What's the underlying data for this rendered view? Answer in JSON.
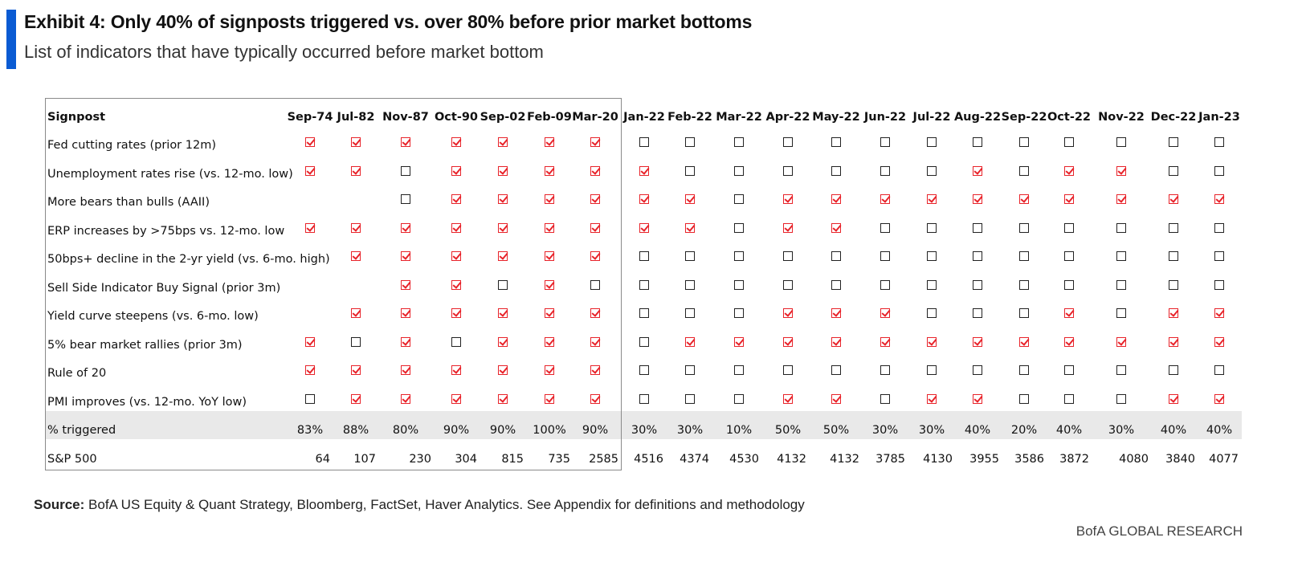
{
  "header": {
    "title": "Exhibit 4: Only 40% of signposts triggered vs. over 80% before prior market bottoms",
    "subtitle": "List of indicators that have typically occurred before market bottom"
  },
  "colors": {
    "accent": "#0a5bd3",
    "checked": "#e8232a",
    "band": "#e9e9e9"
  },
  "table": {
    "corner": "Signpost",
    "periods": [
      "Sep-74",
      "Jul-82",
      "Nov-87",
      "Oct-90",
      "Sep-02",
      "Feb-09",
      "Mar-20",
      "Jan-22",
      "Feb-22",
      "Mar-22",
      "Apr-22",
      "May-22",
      "Jun-22",
      "Jul-22",
      "Aug-22",
      "Sep-22",
      "Oct-22",
      "Nov-22",
      "Dec-22",
      "Jan-23"
    ],
    "rows": [
      {
        "label": "Fed cutting rates (prior 12m)",
        "cells": [
          1,
          1,
          1,
          1,
          1,
          1,
          1,
          0,
          0,
          0,
          0,
          0,
          0,
          0,
          0,
          0,
          0,
          0,
          0,
          0
        ]
      },
      {
        "label": "Unemployment rates rise (vs. 12-mo. low)",
        "cells": [
          1,
          1,
          0,
          1,
          1,
          1,
          1,
          1,
          0,
          0,
          0,
          0,
          0,
          0,
          1,
          0,
          1,
          1,
          0,
          0
        ]
      },
      {
        "label": "More bears than bulls (AAII)",
        "cells": [
          null,
          null,
          0,
          1,
          1,
          1,
          1,
          1,
          1,
          0,
          1,
          1,
          1,
          1,
          1,
          1,
          1,
          1,
          1,
          1
        ]
      },
      {
        "label": "ERP increases by >75bps vs. 12-mo. low",
        "cells": [
          1,
          1,
          1,
          1,
          1,
          1,
          1,
          1,
          1,
          0,
          1,
          1,
          0,
          0,
          0,
          0,
          0,
          0,
          0,
          0
        ]
      },
      {
        "label": "50bps+ decline in the 2-yr yield (vs. 6-mo. high)",
        "cells": [
          null,
          1,
          1,
          1,
          1,
          1,
          1,
          0,
          0,
          0,
          0,
          0,
          0,
          0,
          0,
          0,
          0,
          0,
          0,
          0
        ]
      },
      {
        "label": "Sell Side Indicator Buy Signal (prior 3m)",
        "cells": [
          null,
          null,
          1,
          1,
          0,
          1,
          0,
          0,
          0,
          0,
          0,
          0,
          0,
          0,
          0,
          0,
          0,
          0,
          0,
          0
        ]
      },
      {
        "label": "Yield curve steepens (vs. 6-mo. low)",
        "cells": [
          null,
          1,
          1,
          1,
          1,
          1,
          1,
          0,
          0,
          0,
          1,
          1,
          1,
          0,
          0,
          0,
          1,
          0,
          1,
          1
        ]
      },
      {
        "label": "5% bear market rallies (prior 3m)",
        "cells": [
          1,
          0,
          1,
          0,
          1,
          1,
          1,
          0,
          1,
          1,
          1,
          1,
          1,
          1,
          1,
          1,
          1,
          1,
          1,
          1
        ]
      },
      {
        "label": "Rule of 20",
        "cells": [
          1,
          1,
          1,
          1,
          1,
          1,
          1,
          0,
          0,
          0,
          0,
          0,
          0,
          0,
          0,
          0,
          0,
          0,
          0,
          0
        ]
      },
      {
        "label": "PMI improves (vs. 12-mo. YoY low)",
        "cells": [
          0,
          1,
          1,
          1,
          1,
          1,
          1,
          0,
          0,
          0,
          1,
          1,
          0,
          1,
          1,
          0,
          0,
          0,
          1,
          1
        ]
      }
    ],
    "triggered_label": "% triggered",
    "triggered": [
      "83%",
      "88%",
      "80%",
      "90%",
      "90%",
      "100%",
      "90%",
      "30%",
      "30%",
      "10%",
      "50%",
      "50%",
      "30%",
      "30%",
      "40%",
      "20%",
      "40%",
      "30%",
      "40%",
      "40%"
    ],
    "sp500_label": "S&P 500",
    "sp500": [
      "64",
      "107",
      "230",
      "304",
      "815",
      "735",
      "2585",
      "4516",
      "4374",
      "4530",
      "4132",
      "4132",
      "3785",
      "4130",
      "3955",
      "3586",
      "3872",
      "4080",
      "3840",
      "4077"
    ]
  },
  "footer": {
    "source_label": "Source:",
    "source_text": " BofA US Equity & Quant Strategy, Bloomberg, FactSet, Haver Analytics. See Appendix for definitions and methodology",
    "brand": "BofA GLOBAL RESEARCH"
  }
}
